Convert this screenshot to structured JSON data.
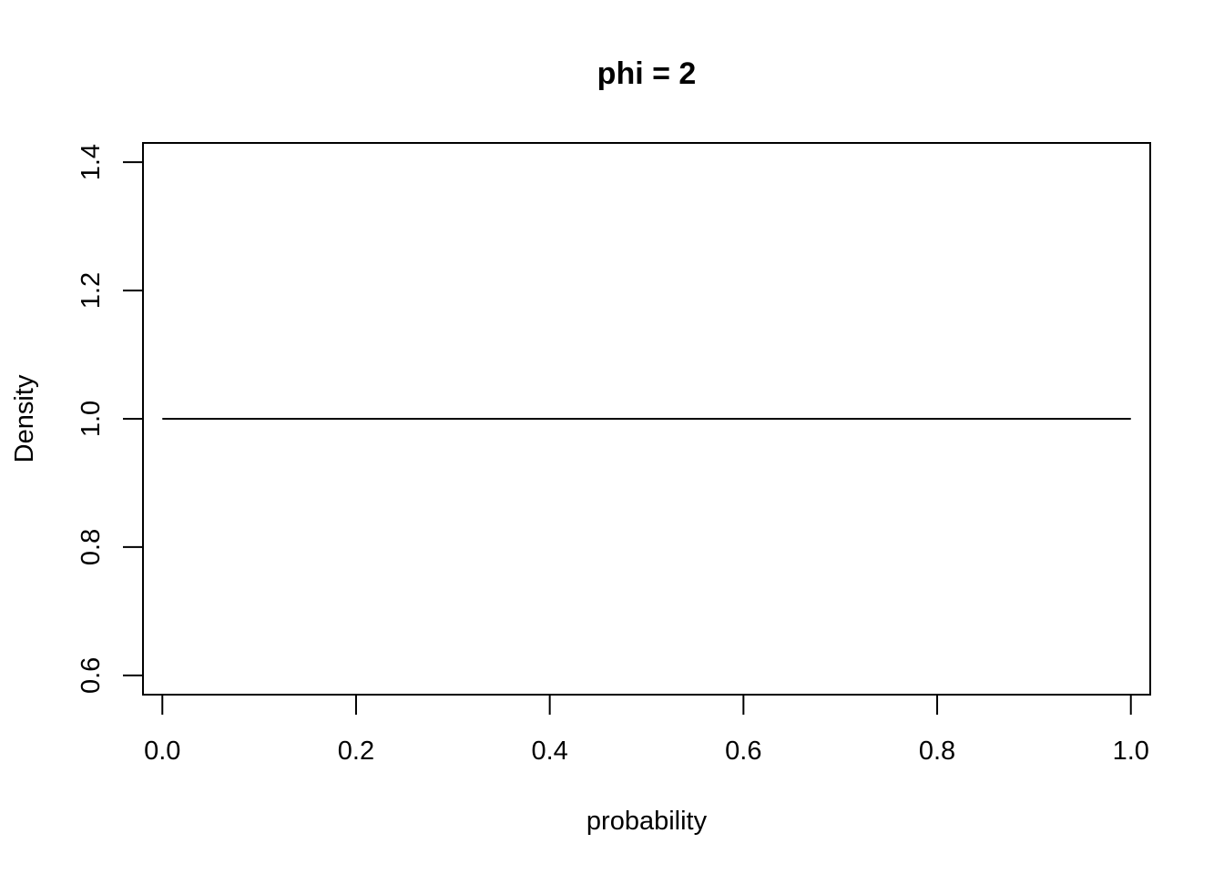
{
  "chart_data": {
    "type": "line",
    "title": "phi = 2",
    "xlabel": "probability",
    "ylabel": "Density",
    "xlim": [
      -0.02,
      1.02
    ],
    "ylim": [
      0.57,
      1.43
    ],
    "x_ticks": [
      0.0,
      0.2,
      0.4,
      0.6,
      0.8,
      1.0
    ],
    "x_tick_labels": [
      "0.0",
      "0.2",
      "0.4",
      "0.6",
      "0.8",
      "1.0"
    ],
    "y_ticks": [
      0.6,
      0.8,
      1.0,
      1.2,
      1.4
    ],
    "y_tick_labels": [
      "0.6",
      "0.8",
      "1.0",
      "1.2",
      "1.4"
    ],
    "grid": false,
    "series": [
      {
        "x": [
          0.0,
          0.25,
          0.5,
          0.75,
          1.0
        ],
        "y": [
          1.0,
          1.0,
          1.0,
          1.0,
          1.0
        ],
        "color": "#000000"
      }
    ]
  }
}
